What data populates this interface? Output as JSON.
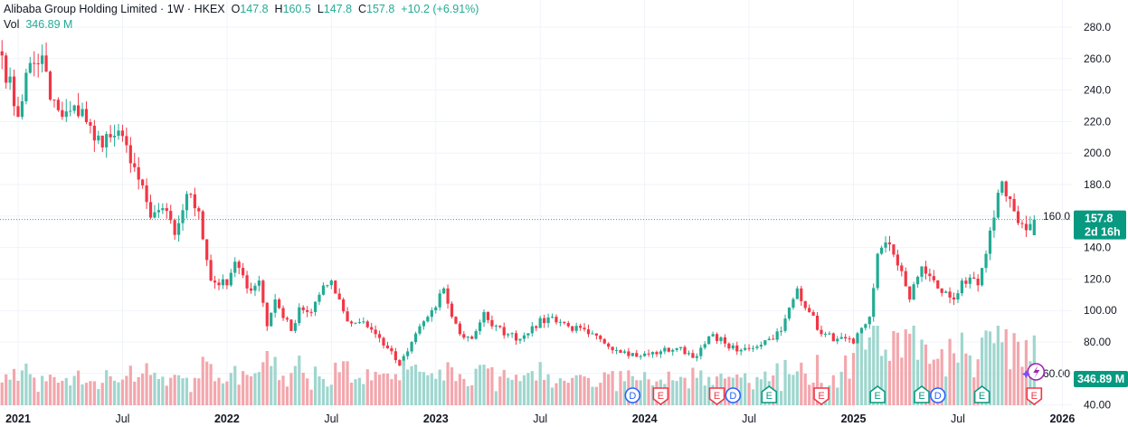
{
  "header": {
    "symbol": "Alibaba Group Holding Limited",
    "sep1": "·",
    "interval": "1W",
    "sep2": "·",
    "exchange": "HKEX",
    "open_label": "O",
    "open": "147.8",
    "high_label": "H",
    "high": "160.5",
    "low_label": "L",
    "low": "147.8",
    "close_label": "C",
    "close": "157.8",
    "change": "+10.2 (+6.91%)",
    "vol_label": "Vol",
    "vol": "346.89 M"
  },
  "price_badge": {
    "price": "157.8",
    "countdown": "2d 16h"
  },
  "volume_badge": "346.89 M",
  "colors": {
    "up": "#22ab94",
    "down": "#f23645",
    "up_vol": "#9fd6ce",
    "down_vol": "#f3a7ad",
    "dividend": "#2962ff",
    "lightning": "#9c27b0"
  },
  "chart_data": {
    "type": "candlestick",
    "title": "Alibaba Group Holding Limited · 1W · HKEX",
    "ylim": [
      40,
      280
    ],
    "y_ticks": [
      "280.0",
      "260.0",
      "240.0",
      "220.0",
      "200.0",
      "180.0",
      "160.0",
      "140.0",
      "120.0",
      "100.00",
      "80.00",
      "60.00",
      "40.00"
    ],
    "y_tick_values": [
      280,
      260,
      240,
      220,
      200,
      180,
      160,
      140,
      120,
      100,
      80,
      60,
      40
    ],
    "x_ticks": [
      {
        "label": "2021",
        "week": 0,
        "year": true
      },
      {
        "label": "Jul",
        "week": 26,
        "year": false
      },
      {
        "label": "2022",
        "week": 52,
        "year": true
      },
      {
        "label": "Jul",
        "week": 78,
        "year": false
      },
      {
        "label": "2023",
        "week": 104,
        "year": true
      },
      {
        "label": "Jul",
        "week": 130,
        "year": false
      },
      {
        "label": "2024",
        "week": 156,
        "year": true
      },
      {
        "label": "Jul",
        "week": 182,
        "year": false
      },
      {
        "label": "2025",
        "week": 208,
        "year": true
      },
      {
        "label": "Jul",
        "week": 234,
        "year": false
      },
      {
        "label": "2026",
        "week": 260,
        "year": true
      }
    ],
    "close_anchors_week_price": [
      [
        -4,
        262
      ],
      [
        0,
        223
      ],
      [
        2,
        251
      ],
      [
        6,
        262
      ],
      [
        8,
        234
      ],
      [
        11,
        223
      ],
      [
        16,
        228
      ],
      [
        19,
        208
      ],
      [
        24,
        211
      ],
      [
        27,
        205
      ],
      [
        29,
        191
      ],
      [
        33,
        159
      ],
      [
        36,
        165
      ],
      [
        39,
        148
      ],
      [
        42,
        174
      ],
      [
        45,
        163
      ],
      [
        48,
        119
      ],
      [
        52,
        116
      ],
      [
        54,
        131
      ],
      [
        57,
        114
      ],
      [
        60,
        119
      ],
      [
        62,
        90
      ],
      [
        64,
        107
      ],
      [
        68,
        87
      ],
      [
        70,
        102
      ],
      [
        73,
        99
      ],
      [
        75,
        110
      ],
      [
        78,
        119
      ],
      [
        80,
        107
      ],
      [
        82,
        93
      ],
      [
        86,
        93
      ],
      [
        89,
        85
      ],
      [
        92,
        76
      ],
      [
        95,
        65
      ],
      [
        97,
        74
      ],
      [
        100,
        90
      ],
      [
        104,
        102
      ],
      [
        106,
        114
      ],
      [
        108,
        96
      ],
      [
        110,
        85
      ],
      [
        113,
        82
      ],
      [
        116,
        99
      ],
      [
        118,
        90
      ],
      [
        122,
        85
      ],
      [
        125,
        82
      ],
      [
        128,
        90
      ],
      [
        133,
        96
      ],
      [
        137,
        90
      ],
      [
        142,
        85
      ],
      [
        146,
        79
      ],
      [
        151,
        74
      ],
      [
        155,
        71
      ],
      [
        160,
        74
      ],
      [
        164,
        76
      ],
      [
        169,
        71
      ],
      [
        173,
        85
      ],
      [
        176,
        79
      ],
      [
        179,
        74
      ],
      [
        182,
        76
      ],
      [
        187,
        82
      ],
      [
        190,
        87
      ],
      [
        194,
        114
      ],
      [
        197,
        99
      ],
      [
        200,
        85
      ],
      [
        204,
        82
      ],
      [
        208,
        79
      ],
      [
        212,
        96
      ],
      [
        214,
        136
      ],
      [
        217,
        142
      ],
      [
        220,
        125
      ],
      [
        222,
        107
      ],
      [
        225,
        128
      ],
      [
        229,
        114
      ],
      [
        233,
        107
      ],
      [
        235,
        119
      ],
      [
        239,
        116
      ],
      [
        241,
        136
      ],
      [
        243,
        159
      ],
      [
        245,
        182
      ],
      [
        248,
        163
      ],
      [
        251,
        151
      ],
      [
        253,
        157.8
      ]
    ],
    "last_candle": {
      "open": 147.8,
      "high": 160.5,
      "low": 147.8,
      "close": 157.8,
      "volume_m": 346.89
    },
    "events": [
      {
        "type": "D",
        "week": 153,
        "label": "D"
      },
      {
        "type": "E",
        "week": 160,
        "label": "E",
        "result": "miss"
      },
      {
        "type": "E",
        "week": 174,
        "label": "E",
        "result": "miss"
      },
      {
        "type": "D",
        "week": 178,
        "label": "D"
      },
      {
        "type": "E",
        "week": 187,
        "label": "E",
        "result": "beat"
      },
      {
        "type": "E",
        "week": 200,
        "label": "E",
        "result": "miss"
      },
      {
        "type": "E",
        "week": 214,
        "label": "E",
        "result": "beat"
      },
      {
        "type": "E",
        "week": 225,
        "label": "E",
        "result": "beat"
      },
      {
        "type": "D",
        "week": 229,
        "label": "D"
      },
      {
        "type": "E",
        "week": 240,
        "label": "E",
        "result": "beat"
      },
      {
        "type": "E",
        "week": 253,
        "label": "E",
        "result": "miss"
      }
    ]
  }
}
